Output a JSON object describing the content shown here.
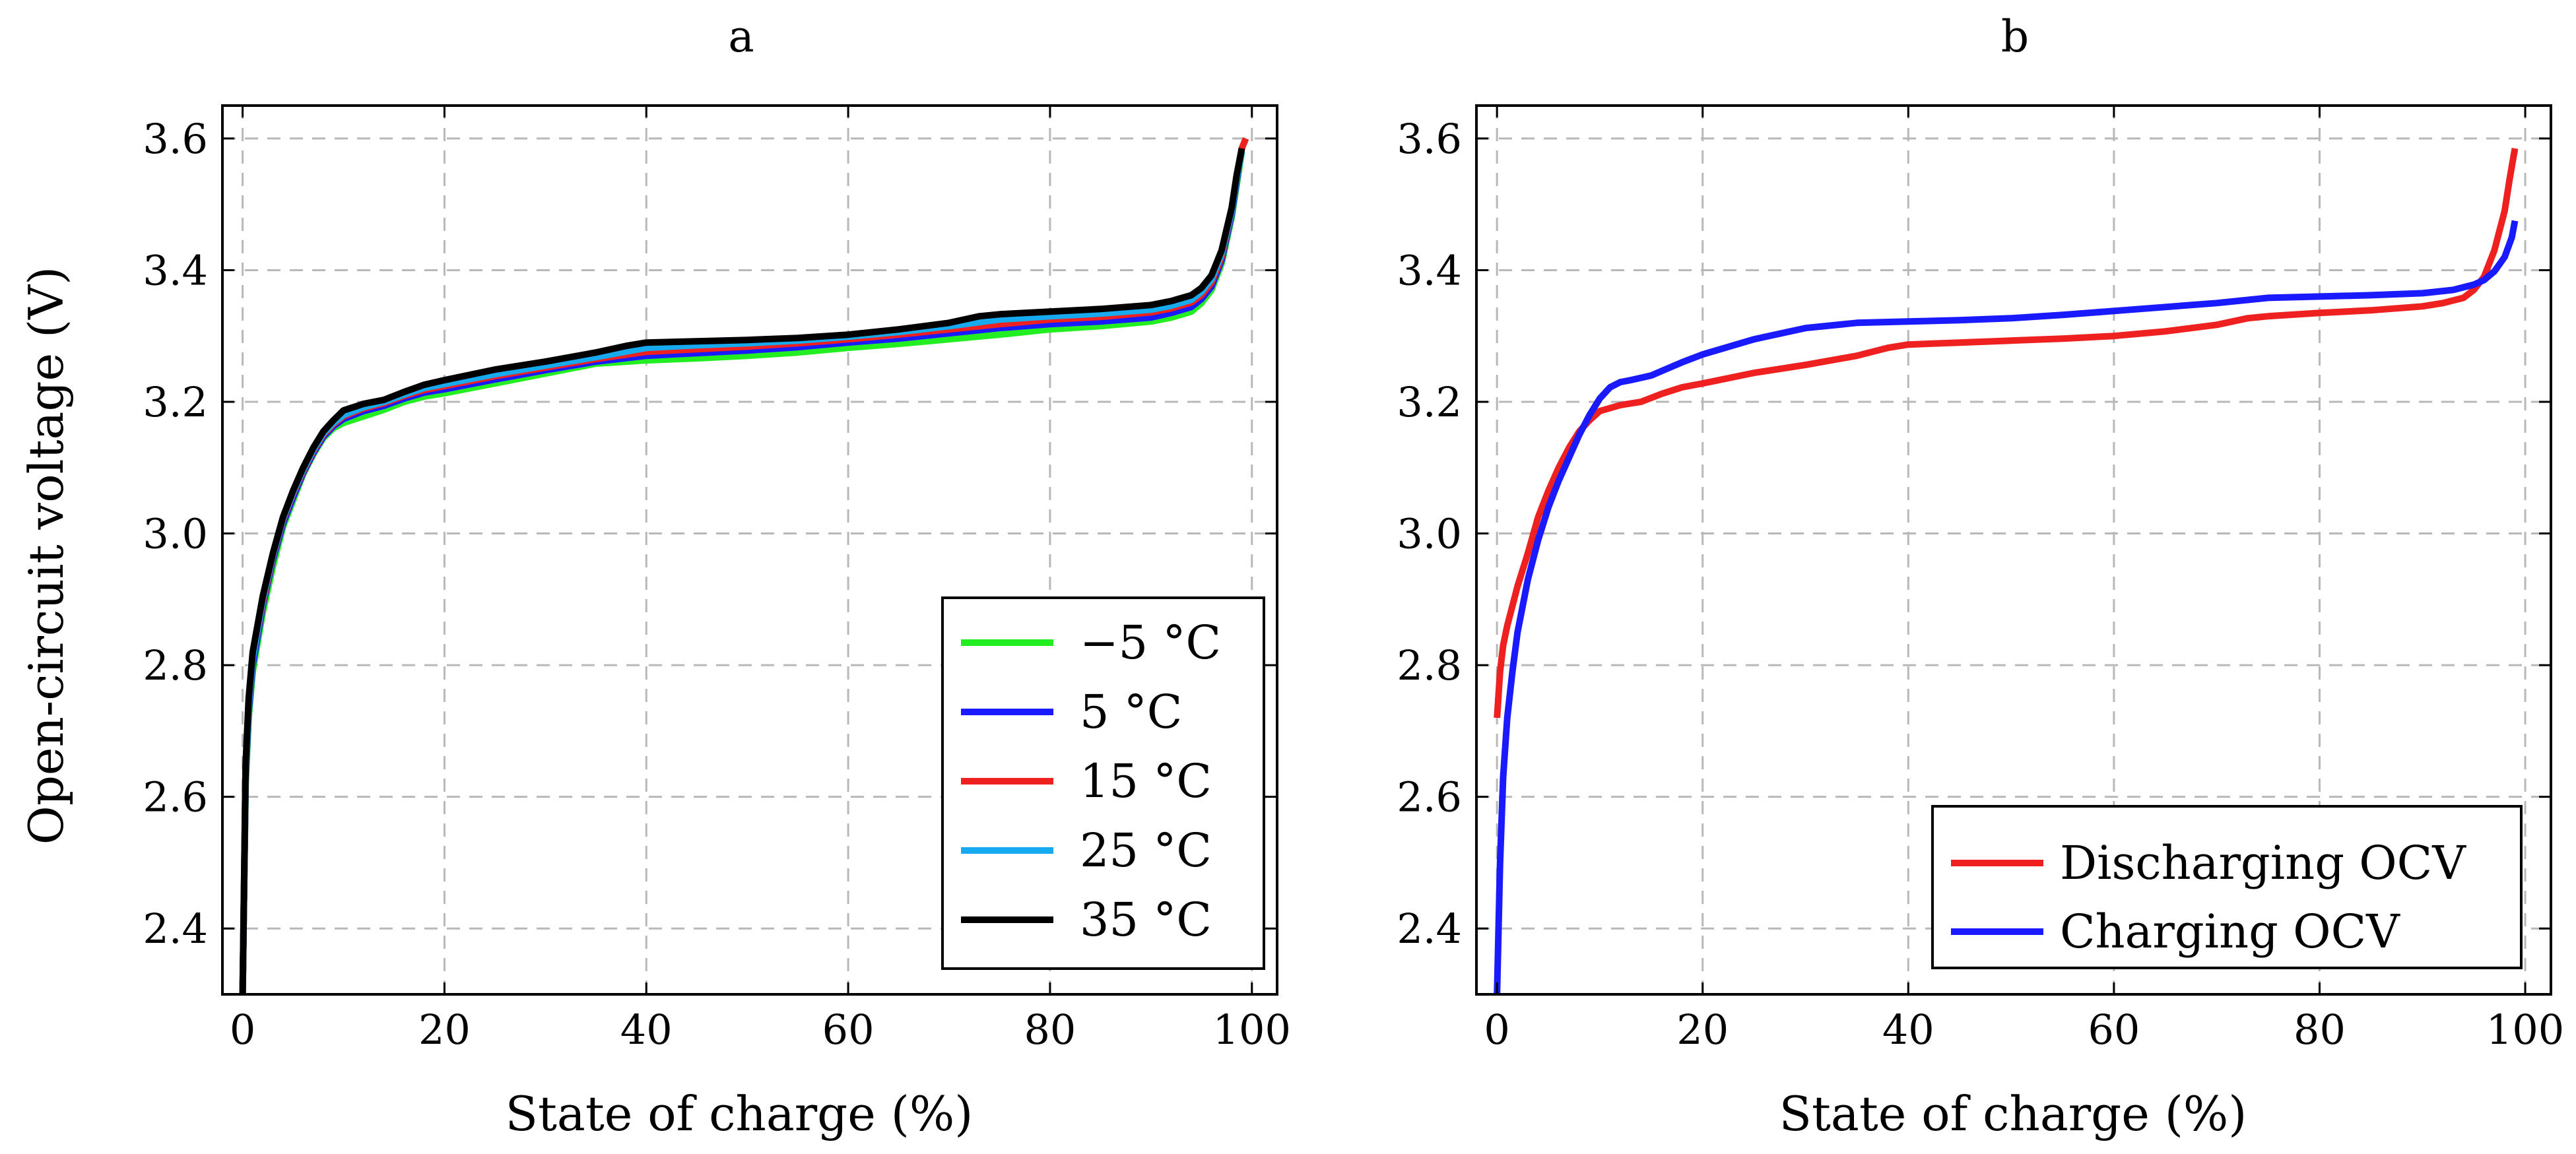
{
  "chart_data": [
    {
      "type": "line",
      "title": "a",
      "xlabel": "State of charge (%)",
      "ylabel": "Open-circuit voltage (V)",
      "xlim": [
        -2,
        102.5
      ],
      "ylim": [
        2.3,
        3.65
      ],
      "xticks": [
        0,
        20,
        40,
        60,
        80,
        100
      ],
      "yticks": [
        2.4,
        2.6,
        2.8,
        3.0,
        3.2,
        3.4,
        3.6
      ],
      "xtick_labels": [
        "0",
        "20",
        "40",
        "60",
        "80",
        "100"
      ],
      "ytick_labels": [
        "2.4",
        "2.6",
        "2.8",
        "3.0",
        "3.2",
        "3.4",
        "3.6"
      ],
      "grid": true,
      "legend_position": "bottom-right",
      "series": [
        {
          "name": "−5 °C",
          "color": "#22ee22",
          "x": [
            0,
            0.3,
            0.6,
            1,
            2,
            3,
            4,
            5,
            6,
            7,
            8,
            9,
            10,
            12,
            14,
            16,
            18,
            20,
            25,
            30,
            35,
            40,
            45,
            50,
            55,
            60,
            65,
            70,
            75,
            80,
            85,
            90,
            92,
            94,
            95,
            96,
            97,
            98,
            98.5,
            99
          ],
          "y": [
            2.3,
            2.62,
            2.72,
            2.79,
            2.88,
            2.95,
            3.01,
            3.05,
            3.09,
            3.12,
            3.145,
            3.16,
            3.168,
            3.178,
            3.188,
            3.2,
            3.208,
            3.213,
            3.228,
            3.243,
            3.258,
            3.263,
            3.266,
            3.27,
            3.275,
            3.282,
            3.288,
            3.295,
            3.302,
            3.31,
            3.315,
            3.322,
            3.328,
            3.337,
            3.35,
            3.37,
            3.41,
            3.48,
            3.53,
            3.58
          ]
        },
        {
          "name": "5 °C",
          "color": "#1a1aff",
          "x": [
            0,
            0.3,
            0.6,
            1,
            2,
            3,
            4,
            5,
            6,
            7,
            8,
            9,
            10,
            12,
            14,
            16,
            18,
            20,
            25,
            30,
            35,
            40,
            45,
            50,
            55,
            60,
            65,
            70,
            75,
            80,
            85,
            90,
            92,
            94,
            95,
            96,
            97,
            98,
            98.5,
            99
          ],
          "y": [
            2.3,
            2.63,
            2.73,
            2.8,
            2.89,
            2.96,
            3.015,
            3.055,
            3.092,
            3.122,
            3.147,
            3.163,
            3.174,
            3.186,
            3.194,
            3.205,
            3.214,
            3.219,
            3.234,
            3.248,
            3.261,
            3.27,
            3.274,
            3.278,
            3.283,
            3.29,
            3.296,
            3.304,
            3.312,
            3.318,
            3.322,
            3.328,
            3.335,
            3.344,
            3.356,
            3.375,
            3.415,
            3.485,
            3.535,
            3.585
          ]
        },
        {
          "name": "15 °C",
          "color": "#ee2020",
          "x": [
            0,
            0.3,
            0.6,
            1,
            2,
            3,
            4,
            5,
            6,
            7,
            8,
            9,
            10,
            12,
            14,
            16,
            18,
            20,
            25,
            30,
            35,
            40,
            45,
            50,
            55,
            60,
            65,
            70,
            75,
            80,
            85,
            90,
            92,
            94,
            95,
            96,
            97,
            98,
            98.5,
            99,
            99.4
          ],
          "y": [
            2.3,
            2.64,
            2.74,
            2.81,
            2.895,
            2.965,
            3.02,
            3.06,
            3.095,
            3.125,
            3.15,
            3.166,
            3.178,
            3.19,
            3.198,
            3.209,
            3.218,
            3.224,
            3.239,
            3.252,
            3.265,
            3.276,
            3.28,
            3.284,
            3.289,
            3.295,
            3.302,
            3.31,
            3.318,
            3.325,
            3.329,
            3.336,
            3.342,
            3.351,
            3.362,
            3.381,
            3.42,
            3.49,
            3.54,
            3.585,
            3.6
          ]
        },
        {
          "name": "25 °C",
          "color": "#18aaee",
          "x": [
            0,
            0.3,
            0.6,
            1,
            2,
            3,
            4,
            5,
            6,
            7,
            8,
            9,
            10,
            12,
            14,
            16,
            18,
            20,
            25,
            30,
            35,
            40,
            45,
            50,
            55,
            60,
            65,
            70,
            75,
            80,
            85,
            90,
            92,
            94,
            95,
            96,
            97,
            98,
            98.5,
            99
          ],
          "y": [
            2.3,
            2.64,
            2.74,
            2.81,
            2.9,
            2.967,
            3.022,
            3.062,
            3.097,
            3.127,
            3.152,
            3.168,
            3.18,
            3.192,
            3.2,
            3.211,
            3.221,
            3.227,
            3.242,
            3.255,
            3.268,
            3.282,
            3.286,
            3.289,
            3.293,
            3.299,
            3.306,
            3.315,
            3.325,
            3.33,
            3.334,
            3.34,
            3.346,
            3.355,
            3.367,
            3.386,
            3.425,
            3.49,
            3.54,
            3.58
          ]
        },
        {
          "name": "35 °C",
          "color": "#000000",
          "x": [
            0,
            0.3,
            0.6,
            1,
            2,
            3,
            4,
            5,
            6,
            7,
            8,
            9,
            10,
            12,
            14,
            16,
            18,
            20,
            25,
            30,
            35,
            38,
            40,
            45,
            50,
            55,
            60,
            65,
            70,
            73,
            75,
            80,
            85,
            90,
            92,
            94,
            95,
            96,
            97,
            98,
            98.5,
            99
          ],
          "y": [
            2.3,
            2.65,
            2.75,
            2.82,
            2.905,
            2.97,
            3.025,
            3.065,
            3.1,
            3.13,
            3.155,
            3.172,
            3.187,
            3.197,
            3.203,
            3.215,
            3.226,
            3.233,
            3.249,
            3.261,
            3.275,
            3.285,
            3.29,
            3.292,
            3.294,
            3.297,
            3.302,
            3.31,
            3.32,
            3.33,
            3.333,
            3.337,
            3.341,
            3.347,
            3.353,
            3.362,
            3.373,
            3.392,
            3.43,
            3.495,
            3.545,
            3.585
          ]
        }
      ]
    },
    {
      "type": "line",
      "title": "b",
      "xlabel": "State of charge (%)",
      "ylabel": "",
      "xlim": [
        -2,
        102.5
      ],
      "ylim": [
        2.3,
        3.65
      ],
      "xticks": [
        0,
        20,
        40,
        60,
        80,
        100
      ],
      "yticks": [
        2.4,
        2.6,
        2.8,
        3.0,
        3.2,
        3.4,
        3.6
      ],
      "xtick_labels": [
        "0",
        "20",
        "40",
        "60",
        "80",
        "100"
      ],
      "ytick_labels": [
        "2.4",
        "2.6",
        "2.8",
        "3.0",
        "3.2",
        "3.4",
        "3.6"
      ],
      "grid": true,
      "legend_position": "bottom-right",
      "series": [
        {
          "name": "Discharging OCV",
          "color": "#ee2020",
          "x": [
            0,
            0.3,
            0.6,
            1,
            2,
            3,
            4,
            5,
            6,
            7,
            8,
            9,
            10,
            12,
            14,
            16,
            18,
            20,
            25,
            30,
            35,
            38,
            40,
            45,
            50,
            55,
            60,
            65,
            70,
            73,
            75,
            80,
            85,
            90,
            92,
            94,
            95,
            96,
            97,
            98,
            98.5,
            99
          ],
          "y": [
            2.72,
            2.79,
            2.83,
            2.86,
            2.92,
            2.97,
            3.025,
            3.065,
            3.1,
            3.13,
            3.155,
            3.172,
            3.186,
            3.195,
            3.2,
            3.212,
            3.222,
            3.228,
            3.244,
            3.256,
            3.27,
            3.282,
            3.287,
            3.29,
            3.293,
            3.296,
            3.3,
            3.307,
            3.317,
            3.327,
            3.33,
            3.335,
            3.339,
            3.345,
            3.35,
            3.358,
            3.37,
            3.39,
            3.43,
            3.49,
            3.54,
            3.585
          ]
        },
        {
          "name": "Charging OCV",
          "color": "#1a1aff",
          "x": [
            0,
            0.3,
            0.6,
            1,
            1.5,
            2,
            3,
            4,
            5,
            6,
            7,
            8,
            9,
            10,
            11,
            12,
            13,
            15,
            18,
            20,
            25,
            30,
            35,
            40,
            45,
            50,
            55,
            60,
            65,
            70,
            75,
            80,
            85,
            90,
            93,
            95,
            96,
            97,
            98,
            98.7,
            99
          ],
          "y": [
            2.3,
            2.5,
            2.63,
            2.72,
            2.79,
            2.85,
            2.93,
            2.99,
            3.04,
            3.08,
            3.115,
            3.15,
            3.18,
            3.205,
            3.222,
            3.23,
            3.233,
            3.24,
            3.26,
            3.272,
            3.295,
            3.312,
            3.32,
            3.322,
            3.324,
            3.327,
            3.332,
            3.338,
            3.344,
            3.35,
            3.358,
            3.36,
            3.362,
            3.365,
            3.37,
            3.378,
            3.385,
            3.398,
            3.42,
            3.45,
            3.475
          ]
        }
      ]
    }
  ]
}
